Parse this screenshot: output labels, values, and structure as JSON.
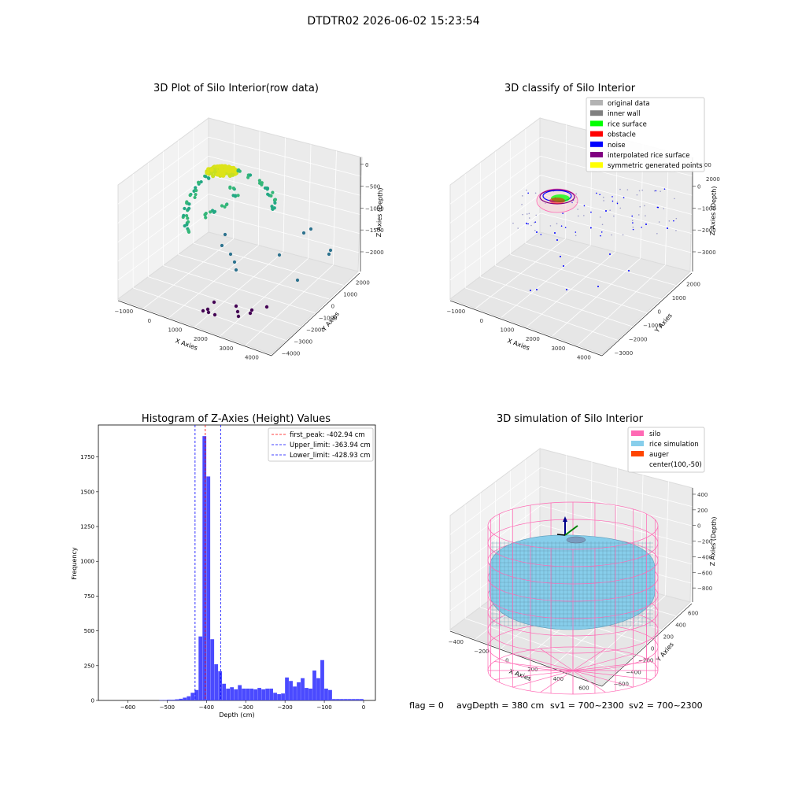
{
  "figure_title": "DTDTR02 2026-06-02 15:23:54",
  "footer": {
    "flag": "flag = 0",
    "avg_depth": "avgDepth = 380 cm",
    "sv1": "sv1 = 700~2300",
    "sv2": "sv2 = 700~2300"
  },
  "chart_data": [
    {
      "type": "scatter",
      "title": "3D Plot of Silo Interior(row data)",
      "xlabel": "X Axies",
      "ylabel": "Y Axies",
      "zlabel": "Z Axies (Depth)",
      "x_ticks": [
        "−1000",
        "0",
        "1000",
        "2000",
        "3000",
        "4000"
      ],
      "y_ticks": [
        "−4000",
        "−3000",
        "−2000",
        "−1000",
        "0",
        "1000",
        "2000"
      ],
      "z_ticks": [
        "0",
        "−500",
        "−1000",
        "−1500",
        "−2000"
      ],
      "colors": {
        "top": "#dde318",
        "mid": "#22a884",
        "low": "#2c728e",
        "bottom": "#440154"
      }
    },
    {
      "type": "scatter",
      "title": "3D classify of Silo Interior",
      "xlabel": "X Axies",
      "ylabel": "Y Axies",
      "zlabel": "Z Axies (Depth)",
      "x_ticks": [
        "−1000",
        "0",
        "1000",
        "2000",
        "3000",
        "4000"
      ],
      "y_ticks": [
        "−3000",
        "−2000",
        "−1000",
        "0",
        "1000",
        "2000"
      ],
      "z_ticks": [
        "1000",
        "0",
        "−1000",
        "−2000",
        "−3000"
      ],
      "legend": [
        {
          "label": "original data",
          "color": "#b3b3b3"
        },
        {
          "label": "inner wall",
          "color": "#808080"
        },
        {
          "label": "rice surface",
          "color": "#00ff00"
        },
        {
          "label": "obstacle",
          "color": "#ff0000"
        },
        {
          "label": "noise",
          "color": "#0000ff"
        },
        {
          "label": "interpolated rice surface",
          "color": "#800080"
        },
        {
          "label": "symmetric generated points",
          "color": "#ffff00"
        }
      ],
      "legend_placement": "top-right",
      "z_partial_tick": "2000"
    },
    {
      "type": "bar",
      "title": "Histogram of Z-Axies (Height) Values",
      "xlabel": "Depth (cm)",
      "ylabel": "Frequency",
      "xlim": [
        -675,
        30
      ],
      "ylim": [
        0,
        1980
      ],
      "x_ticks": [
        -600,
        -500,
        -400,
        -300,
        -200,
        -100,
        0
      ],
      "y_ticks": [
        0,
        250,
        500,
        750,
        1000,
        1250,
        1500,
        1750
      ],
      "bin_width": 10,
      "bin_starts": [
        -520,
        -510,
        -500,
        -490,
        -480,
        -470,
        -460,
        -450,
        -440,
        -430,
        -420,
        -410,
        -400,
        -390,
        -380,
        -370,
        -360,
        -350,
        -340,
        -330,
        -320,
        -310,
        -300,
        -290,
        -280,
        -270,
        -260,
        -250,
        -240,
        -230,
        -220,
        -210,
        -200,
        -190,
        -180,
        -170,
        -160,
        -150,
        -140,
        -130,
        -120,
        -110,
        -100,
        -90,
        -80,
        -70,
        -60,
        -50,
        -40,
        -30,
        -20,
        -10
      ],
      "values": [
        3,
        3,
        5,
        5,
        8,
        12,
        20,
        30,
        55,
        75,
        460,
        1900,
        1610,
        440,
        260,
        210,
        120,
        85,
        95,
        80,
        110,
        85,
        85,
        85,
        80,
        90,
        80,
        85,
        85,
        55,
        45,
        50,
        165,
        140,
        100,
        130,
        160,
        90,
        85,
        215,
        160,
        290,
        85,
        75,
        10,
        10,
        10,
        10,
        10,
        10,
        10,
        10
      ],
      "bar_color": "#4a4aff",
      "vlines": [
        {
          "label": "first_peak: -402.94 cm",
          "x": -402.94,
          "color": "#ff0000"
        },
        {
          "label": "Upper_limit: -363.94 cm",
          "x": -363.94,
          "color": "#0000ff"
        },
        {
          "label": "Lower_limit: -428.93 cm",
          "x": -428.93,
          "color": "#0000ff"
        }
      ],
      "legend_placement": "top-right"
    },
    {
      "type": "scatter",
      "title": "3D simulation of Silo Interior",
      "xlabel": "X Axies",
      "ylabel": "Y Axies",
      "zlabel": "Z Axies (Depth)",
      "x_ticks": [
        "−400",
        "−200",
        "0",
        "200",
        "400",
        "600"
      ],
      "y_ticks": [
        "−600",
        "−400",
        "−200",
        "0",
        "200",
        "400",
        "600"
      ],
      "z_ticks": [
        "400",
        "200",
        "0",
        "−200",
        "−400",
        "−600",
        "−800"
      ],
      "legend": [
        {
          "label": "silo",
          "color": "#ff69b4"
        },
        {
          "label": "rice simulation",
          "color": "#87ceeb"
        },
        {
          "label": "auger",
          "color": "#ff4500"
        },
        {
          "label": "center(100,-50)",
          "color": ""
        }
      ],
      "legend_placement": "top-right"
    }
  ]
}
